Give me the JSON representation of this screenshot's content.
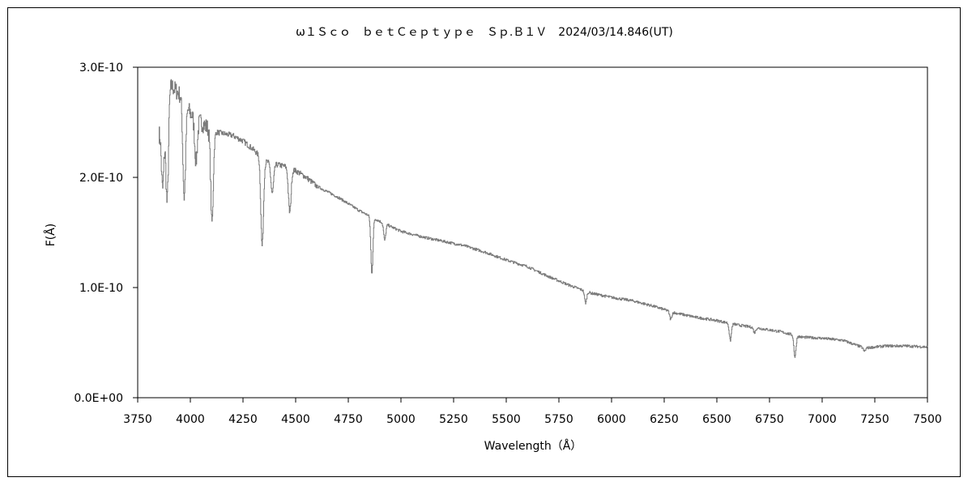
{
  "chart_data": {
    "type": "line",
    "title": "ω１Ｓｃｏ　ｂｅｔＣｅｐｔｙｐｅ　Ｓｐ.Ｂ１Ｖ　2024/03/14.846(UT)",
    "xlabel": "Wavelength（Å）",
    "ylabel": "F(Å)",
    "xlim": [
      3750,
      7500
    ],
    "ylim": [
      0.0,
      3e-10
    ],
    "grid": false,
    "x_ticks": [
      "3750",
      "4000",
      "4250",
      "4500",
      "4750",
      "5000",
      "5250",
      "5500",
      "5750",
      "6000",
      "6250",
      "6500",
      "6750",
      "7000",
      "7250",
      "7500"
    ],
    "y_ticks": [
      "0.0E+00",
      "1.0E-10",
      "2.0E-10",
      "3.0E-10"
    ],
    "series": [
      {
        "color": "#7a7a7a",
        "continuum": [
          [
            3850,
            2.4e-10
          ],
          [
            3900,
            2.85e-10
          ],
          [
            3950,
            2.75e-10
          ],
          [
            4000,
            2.58e-10
          ],
          [
            4050,
            2.5e-10
          ],
          [
            4100,
            2.42e-10
          ],
          [
            4150,
            2.4e-10
          ],
          [
            4200,
            2.38e-10
          ],
          [
            4250,
            2.33e-10
          ],
          [
            4300,
            2.25e-10
          ],
          [
            4350,
            2.15e-10
          ],
          [
            4400,
            2.12e-10
          ],
          [
            4450,
            2.1e-10
          ],
          [
            4500,
            2.06e-10
          ],
          [
            4550,
            2e-10
          ],
          [
            4600,
            1.92e-10
          ],
          [
            4700,
            1.82e-10
          ],
          [
            4800,
            1.7e-10
          ],
          [
            4900,
            1.6e-10
          ],
          [
            5000,
            1.51e-10
          ],
          [
            5100,
            1.46e-10
          ],
          [
            5200,
            1.42e-10
          ],
          [
            5300,
            1.38e-10
          ],
          [
            5400,
            1.32e-10
          ],
          [
            5500,
            1.25e-10
          ],
          [
            5600,
            1.19e-10
          ],
          [
            5700,
            1.1e-10
          ],
          [
            5800,
            1.02e-10
          ],
          [
            5900,
            9.5e-11
          ],
          [
            6000,
            9.1e-11
          ],
          [
            6100,
            8.8e-11
          ],
          [
            6200,
            8.3e-11
          ],
          [
            6300,
            7.7e-11
          ],
          [
            6400,
            7.3e-11
          ],
          [
            6500,
            7e-11
          ],
          [
            6600,
            6.6e-11
          ],
          [
            6700,
            6.3e-11
          ],
          [
            6800,
            6e-11
          ],
          [
            6900,
            5.5e-11
          ],
          [
            7000,
            5.4e-11
          ],
          [
            7100,
            5.2e-11
          ],
          [
            7200,
            4.5e-11
          ],
          [
            7300,
            4.7e-11
          ],
          [
            7400,
            4.7e-11
          ],
          [
            7500,
            4.6e-11
          ]
        ],
        "absorption_lines": [
          {
            "wavelength": 3868,
            "min": 1.9e-10
          },
          {
            "wavelength": 3889,
            "min": 1.78e-10
          },
          {
            "wavelength": 3970,
            "min": 1.82e-10
          },
          {
            "wavelength": 4026,
            "min": 2.15e-10
          },
          {
            "wavelength": 4102,
            "min": 1.6e-10
          },
          {
            "wavelength": 4340,
            "min": 1.38e-10
          },
          {
            "wavelength": 4388,
            "min": 1.85e-10
          },
          {
            "wavelength": 4471,
            "min": 1.68e-10
          },
          {
            "wavelength": 4861,
            "min": 1.13e-10
          },
          {
            "wavelength": 4922,
            "min": 1.43e-10
          },
          {
            "wavelength": 5876,
            "min": 8.6e-11
          },
          {
            "wavelength": 6280,
            "min": 7.1e-11
          },
          {
            "wavelength": 6563,
            "min": 5.2e-11
          },
          {
            "wavelength": 6678,
            "min": 5.9e-11
          },
          {
            "wavelength": 6870,
            "min": 3.7e-11
          },
          {
            "wavelength": 7200,
            "min": 4.2e-11
          }
        ]
      }
    ]
  }
}
